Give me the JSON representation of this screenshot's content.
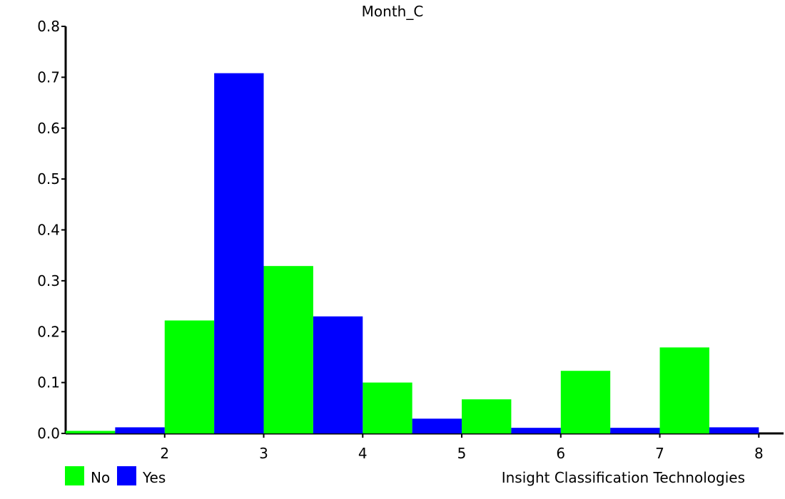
{
  "chart_data": {
    "type": "bar",
    "title": "Month_C",
    "categories": [
      "1.5",
      "2",
      "2.5",
      "3",
      "3.5",
      "4",
      "4.5",
      "5",
      "5.5",
      "6",
      "6.5",
      "7",
      "7.5",
      "8"
    ],
    "series": [
      {
        "name": "No",
        "color": "#00ff00",
        "x": [
          1.25,
          2.25,
          3.25,
          4.25,
          5.25,
          6.25,
          7.25
        ],
        "values": [
          0.005,
          0.222,
          0.329,
          0.1,
          0.067,
          0.123,
          0.169
        ]
      },
      {
        "name": "Yes",
        "color": "#0000ff",
        "x": [
          1.75,
          2.75,
          3.75,
          4.75,
          5.75,
          6.75,
          7.75
        ],
        "values": [
          0.012,
          0.708,
          0.23,
          0.029,
          0.011,
          0.011,
          0.012
        ]
      }
    ],
    "x_ticks": [
      2,
      3,
      4,
      5,
      6,
      7,
      8
    ],
    "y_ticks": [
      0.0,
      0.1,
      0.2,
      0.3,
      0.4,
      0.5,
      0.6,
      0.7,
      0.8
    ],
    "xlim": [
      1.0,
      8.25
    ],
    "ylim": [
      0,
      0.8
    ],
    "legend": {
      "position": "bottom-left",
      "items": [
        "No",
        "Yes"
      ]
    },
    "footer_text": "Insight Classification Technologies"
  }
}
